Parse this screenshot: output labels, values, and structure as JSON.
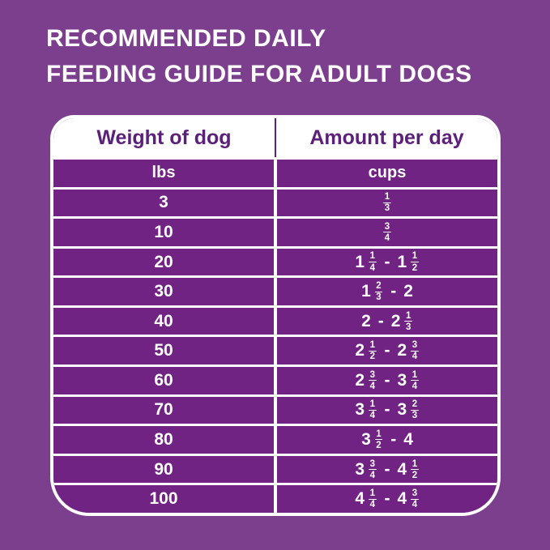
{
  "title": {
    "line1": "RECOMMENDED DAILY",
    "line2": "FEEDING GUIDE FOR ADULT DOGS"
  },
  "colors": {
    "background": "#7c3f8e",
    "row_fill": "#712384",
    "header_fill": "#ffffff",
    "header_text": "#5b2079",
    "body_text": "#ffffff",
    "border": "#ffffff"
  },
  "table": {
    "columns": {
      "weight": "Weight of dog",
      "amount": "Amount per day"
    },
    "units": {
      "weight": "lbs",
      "amount": "cups"
    },
    "rows": [
      {
        "weight": "3",
        "amount": "1/3"
      },
      {
        "weight": "10",
        "amount": "3/4"
      },
      {
        "weight": "20",
        "amount": "1 1/4 - 1 1/2"
      },
      {
        "weight": "30",
        "amount": "1 2/3 - 2"
      },
      {
        "weight": "40",
        "amount": "2 - 2 1/3"
      },
      {
        "weight": "50",
        "amount": "2 1/2 - 2 3/4"
      },
      {
        "weight": "60",
        "amount": "2 3/4 - 3 1/4"
      },
      {
        "weight": "70",
        "amount": "3 1/4 - 3 2/3"
      },
      {
        "weight": "80",
        "amount": "3 1/2 - 4"
      },
      {
        "weight": "90",
        "amount": "3 3/4 - 4 1/2"
      },
      {
        "weight": "100",
        "amount": "4 1/4 - 4 3/4"
      }
    ]
  },
  "chart_data": {
    "type": "table",
    "title": "Recommended Daily Feeding Guide for Adult Dogs",
    "columns": [
      "Weight of dog (lbs)",
      "Amount per day (cups)"
    ],
    "rows": [
      {
        "weight_lbs": 3,
        "cups_min": 0.333,
        "cups_max": 0.333,
        "amount_text": "1/3"
      },
      {
        "weight_lbs": 10,
        "cups_min": 0.75,
        "cups_max": 0.75,
        "amount_text": "3/4"
      },
      {
        "weight_lbs": 20,
        "cups_min": 1.25,
        "cups_max": 1.5,
        "amount_text": "1 1/4 - 1 1/2"
      },
      {
        "weight_lbs": 30,
        "cups_min": 1.667,
        "cups_max": 2,
        "amount_text": "1 2/3 - 2"
      },
      {
        "weight_lbs": 40,
        "cups_min": 2,
        "cups_max": 2.333,
        "amount_text": "2 - 2 1/3"
      },
      {
        "weight_lbs": 50,
        "cups_min": 2.5,
        "cups_max": 2.75,
        "amount_text": "2 1/2 - 2 3/4"
      },
      {
        "weight_lbs": 60,
        "cups_min": 2.75,
        "cups_max": 3.25,
        "amount_text": "2 3/4 - 3 1/4"
      },
      {
        "weight_lbs": 70,
        "cups_min": 3.25,
        "cups_max": 3.667,
        "amount_text": "3 1/4 - 3 2/3"
      },
      {
        "weight_lbs": 80,
        "cups_min": 3.5,
        "cups_max": 4,
        "amount_text": "3 1/2 - 4"
      },
      {
        "weight_lbs": 90,
        "cups_min": 3.75,
        "cups_max": 4.5,
        "amount_text": "3 3/4 - 4 1/2"
      },
      {
        "weight_lbs": 100,
        "cups_min": 4.25,
        "cups_max": 4.75,
        "amount_text": "4 1/4 - 4 3/4"
      }
    ]
  }
}
